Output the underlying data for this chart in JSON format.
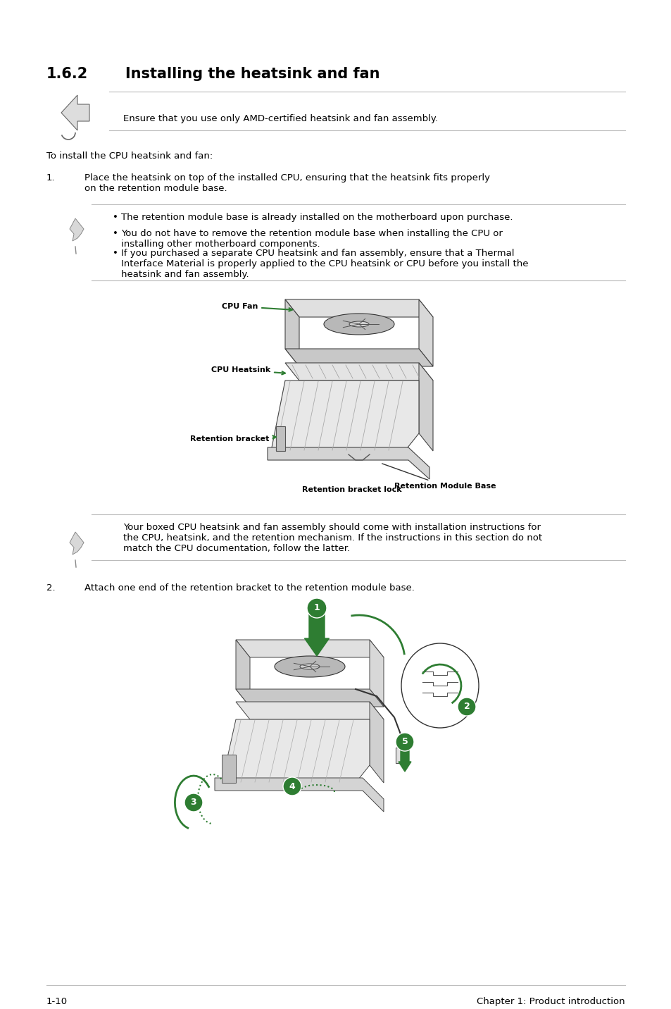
{
  "page_bg": "#ffffff",
  "title_number": "1.6.2",
  "title_text": "Installing the heatsink and fan",
  "title_fontsize": 15,
  "body_fontsize": 9.5,
  "label_fontsize": 8.0,
  "footer_left": "1-10",
  "footer_right": "Chapter 1: Product introduction",
  "warning_text": "Ensure that you use only AMD-certified heatsink and fan assembly.",
  "intro_text": "To install the CPU heatsink and fan:",
  "step1_text": "Place the heatsink on top of the installed CPU, ensuring that the heatsink fits properly\non the retention module base.",
  "note1_bullets": [
    "The retention module base is already installed on the motherboard upon purchase.",
    "You do not have to remove the retention module base when installing the CPU or\ninstalling other motherboard components.",
    "If you purchased a separate CPU heatsink and fan assembly, ensure that a Thermal\nInterface Material is properly applied to the CPU heatsink or CPU before you install the\nheatsink and fan assembly."
  ],
  "note2_text": "Your boxed CPU heatsink and fan assembly should come with installation instructions for\nthe CPU, heatsink, and the retention mechanism. If the instructions in this section do not\nmatch the CPU documentation, follow the latter.",
  "step2_text": "Attach one end of the retention bracket to the retention module base.",
  "line_color": "#bbbbbb",
  "text_color": "#000000",
  "green_color": "#2e7d32",
  "gray_light": "#e8e8e8",
  "gray_mid": "#cccccc",
  "gray_dark": "#888888"
}
